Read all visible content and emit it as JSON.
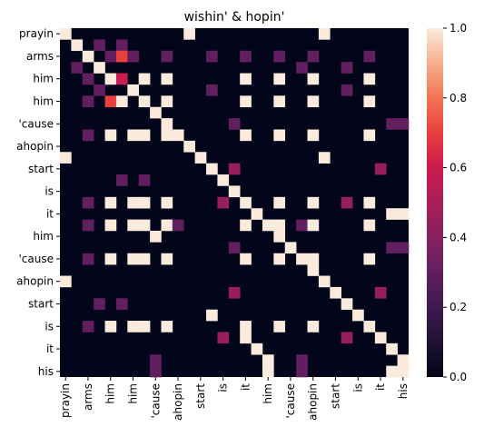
{
  "chart_data": {
    "type": "heatmap",
    "title": "wishin' & hopin'",
    "xlabel": "",
    "ylabel": "",
    "x_tick_labels": [
      "prayin",
      "arms",
      "him",
      "him",
      "'cause",
      "ahopin",
      "start",
      "is",
      "it",
      "him",
      "'cause",
      "ahopin",
      "start",
      "is",
      "it",
      "his"
    ],
    "y_tick_labels": [
      "prayin",
      "arms",
      "him",
      "him",
      "'cause",
      "ahopin",
      "start",
      "is",
      "it",
      "him",
      "'cause",
      "ahopin",
      "start",
      "is",
      "it",
      "his"
    ],
    "colorbar": {
      "min": 0.0,
      "max": 1.0,
      "ticks": [
        "0.0",
        "0.2",
        "0.4",
        "0.6",
        "0.8",
        "1.0"
      ],
      "colormap": "rocket"
    },
    "n_rows": 31,
    "n_cols": 31,
    "cells": [
      [
        0,
        0,
        1
      ],
      [
        0,
        11,
        1
      ],
      [
        0,
        23,
        1
      ],
      [
        1,
        1,
        1
      ],
      [
        1,
        3,
        0.3
      ],
      [
        1,
        5,
        0.3
      ],
      [
        2,
        2,
        1
      ],
      [
        2,
        4,
        0.3
      ],
      [
        2,
        5,
        0.7
      ],
      [
        2,
        6,
        0.3
      ],
      [
        2,
        9,
        0.3
      ],
      [
        2,
        13,
        0.3
      ],
      [
        2,
        16,
        0.3
      ],
      [
        2,
        19,
        0.3
      ],
      [
        2,
        22,
        0.3
      ],
      [
        2,
        27,
        0.3
      ],
      [
        3,
        1,
        0.3
      ],
      [
        3,
        3,
        1
      ],
      [
        3,
        21,
        0.3
      ],
      [
        3,
        25,
        0.3
      ],
      [
        4,
        2,
        0.3
      ],
      [
        4,
        4,
        1
      ],
      [
        4,
        5,
        0.6
      ],
      [
        4,
        7,
        1
      ],
      [
        4,
        9,
        1
      ],
      [
        4,
        16,
        1
      ],
      [
        4,
        19,
        1
      ],
      [
        4,
        22,
        1
      ],
      [
        4,
        27,
        1
      ],
      [
        5,
        3,
        0.3
      ],
      [
        5,
        6,
        1
      ],
      [
        5,
        13,
        0.3
      ],
      [
        5,
        25,
        0.3
      ],
      [
        6,
        2,
        0.3
      ],
      [
        6,
        4,
        0.7
      ],
      [
        6,
        5,
        1
      ],
      [
        6,
        7,
        1
      ],
      [
        6,
        9,
        1
      ],
      [
        6,
        16,
        1
      ],
      [
        6,
        19,
        1
      ],
      [
        6,
        22,
        1
      ],
      [
        6,
        27,
        1
      ],
      [
        7,
        8,
        1
      ],
      [
        8,
        9,
        1
      ],
      [
        8,
        15,
        0.3
      ],
      [
        8,
        29,
        0.3
      ],
      [
        8,
        30,
        0.3
      ],
      [
        9,
        2,
        0.3
      ],
      [
        9,
        4,
        1
      ],
      [
        9,
        6,
        1
      ],
      [
        9,
        7,
        1
      ],
      [
        9,
        9,
        1
      ],
      [
        9,
        10,
        1
      ],
      [
        9,
        16,
        1
      ],
      [
        9,
        19,
        1
      ],
      [
        9,
        22,
        1
      ],
      [
        9,
        27,
        1
      ],
      [
        10,
        11,
        1
      ],
      [
        11,
        0,
        1
      ],
      [
        11,
        12,
        1
      ],
      [
        11,
        23,
        1
      ],
      [
        12,
        13,
        1
      ],
      [
        12,
        15,
        0.45
      ],
      [
        12,
        28,
        0.45
      ],
      [
        13,
        5,
        0.3
      ],
      [
        13,
        7,
        0.3
      ],
      [
        13,
        14,
        1
      ],
      [
        14,
        15,
        1
      ],
      [
        15,
        2,
        0.3
      ],
      [
        15,
        4,
        1
      ],
      [
        15,
        6,
        1
      ],
      [
        15,
        7,
        1
      ],
      [
        15,
        9,
        1
      ],
      [
        15,
        14,
        0.45
      ],
      [
        15,
        16,
        1
      ],
      [
        15,
        19,
        1
      ],
      [
        15,
        22,
        1
      ],
      [
        15,
        25,
        0.45
      ],
      [
        15,
        27,
        1
      ],
      [
        16,
        17,
        1
      ],
      [
        16,
        29,
        1
      ],
      [
        16,
        30,
        1
      ],
      [
        17,
        2,
        0.3
      ],
      [
        17,
        4,
        1
      ],
      [
        17,
        6,
        1
      ],
      [
        17,
        7,
        1
      ],
      [
        17,
        9,
        1
      ],
      [
        17,
        10,
        0.3
      ],
      [
        17,
        16,
        1
      ],
      [
        17,
        18,
        1
      ],
      [
        17,
        19,
        1
      ],
      [
        17,
        21,
        0.3
      ],
      [
        17,
        22,
        1
      ],
      [
        17,
        27,
        1
      ],
      [
        18,
        8,
        1
      ],
      [
        18,
        19,
        1
      ],
      [
        19,
        15,
        0.3
      ],
      [
        19,
        20,
        1
      ],
      [
        19,
        29,
        0.3
      ],
      [
        19,
        30,
        0.3
      ],
      [
        20,
        2,
        0.3
      ],
      [
        20,
        4,
        1
      ],
      [
        20,
        6,
        1
      ],
      [
        20,
        7,
        1
      ],
      [
        20,
        9,
        1
      ],
      [
        20,
        16,
        1
      ],
      [
        20,
        19,
        1
      ],
      [
        20,
        21,
        1
      ],
      [
        20,
        22,
        1
      ],
      [
        20,
        27,
        1
      ],
      [
        21,
        22,
        1
      ],
      [
        22,
        0,
        1
      ],
      [
        22,
        23,
        1
      ],
      [
        23,
        15,
        0.45
      ],
      [
        23,
        24,
        1
      ],
      [
        23,
        28,
        0.45
      ],
      [
        24,
        3,
        0.3
      ],
      [
        24,
        5,
        0.3
      ],
      [
        24,
        25,
        1
      ],
      [
        25,
        13,
        1
      ],
      [
        25,
        26,
        1
      ],
      [
        26,
        2,
        0.3
      ],
      [
        26,
        4,
        1
      ],
      [
        26,
        6,
        1
      ],
      [
        26,
        7,
        1
      ],
      [
        26,
        9,
        1
      ],
      [
        26,
        16,
        1
      ],
      [
        26,
        19,
        1
      ],
      [
        26,
        22,
        1
      ],
      [
        26,
        27,
        1
      ],
      [
        27,
        14,
        0.45
      ],
      [
        27,
        16,
        1
      ],
      [
        27,
        25,
        0.45
      ],
      [
        27,
        28,
        1
      ],
      [
        28,
        17,
        1
      ],
      [
        28,
        29,
        1
      ],
      [
        29,
        8,
        0.3
      ],
      [
        29,
        18,
        1
      ],
      [
        29,
        21,
        0.3
      ],
      [
        29,
        30,
        1
      ],
      [
        30,
        8,
        0.3
      ],
      [
        30,
        18,
        1
      ],
      [
        30,
        21,
        0.3
      ],
      [
        30,
        29,
        1
      ],
      [
        30,
        30,
        1
      ]
    ]
  }
}
